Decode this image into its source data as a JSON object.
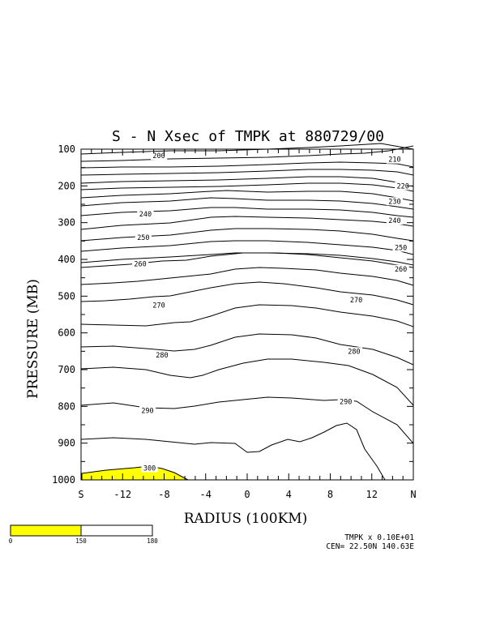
{
  "chart_data": {
    "type": "contour",
    "title": "S - N Xsec of TMPK at 880729/00",
    "xlabel": "RADIUS (100KM)",
    "ylabel": "PRESSURE (MB)",
    "x_ticks": [
      "S",
      "-12",
      "-8",
      "-4",
      "0",
      "4",
      "8",
      "12",
      "N"
    ],
    "y_ticks": [
      "100",
      "200",
      "300",
      "400",
      "500",
      "600",
      "700",
      "800",
      "900",
      "1000"
    ],
    "x_values": [
      -16,
      -12,
      -8,
      -4,
      0,
      4,
      8,
      12,
      16
    ],
    "y_values": [
      100,
      200,
      300,
      400,
      500,
      600,
      700,
      800,
      900,
      1000
    ],
    "xlim": [
      -16,
      16
    ],
    "ylim": [
      1000,
      100
    ],
    "shading": {
      "threshold": 300,
      "color": "#ffff00"
    },
    "contour_labels": [
      {
        "text": "200",
        "x": -8.5,
        "p": 118
      },
      {
        "text": "210",
        "x": 14.2,
        "p": 128
      },
      {
        "text": "220",
        "x": 15.0,
        "p": 200
      },
      {
        "text": "230",
        "x": 14.2,
        "p": 242
      },
      {
        "text": "240",
        "x": -9.8,
        "p": 276
      },
      {
        "text": "240",
        "x": 14.2,
        "p": 294
      },
      {
        "text": "250",
        "x": -10.0,
        "p": 340
      },
      {
        "text": "250",
        "x": 14.8,
        "p": 368
      },
      {
        "text": "260",
        "x": -10.3,
        "p": 412
      },
      {
        "text": "260",
        "x": 14.8,
        "p": 426
      },
      {
        "text": "270",
        "x": -8.5,
        "p": 525
      },
      {
        "text": "270",
        "x": 10.5,
        "p": 510
      },
      {
        "text": "280",
        "x": -8.2,
        "p": 660
      },
      {
        "text": "280",
        "x": 10.3,
        "p": 650
      },
      {
        "text": "290",
        "x": -9.6,
        "p": 811
      },
      {
        "text": "290",
        "x": 9.5,
        "p": 787
      },
      {
        "text": "300",
        "x": -9.4,
        "p": 968
      }
    ],
    "colorbar": {
      "ticks": [
        "0",
        "150",
        "180"
      ]
    },
    "footer": {
      "line1": "TMPK x  0.10E+01",
      "line2": "CEN= 22.50N  140.63E"
    }
  }
}
